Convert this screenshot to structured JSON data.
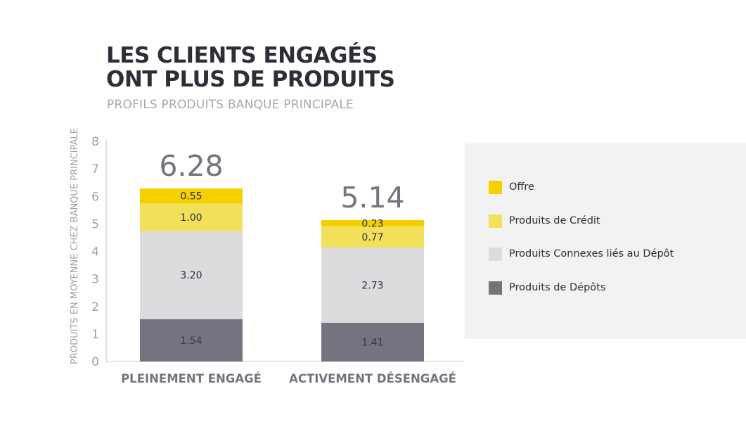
{
  "header": {
    "title_line1": "LES CLIENTS ENGAGÉS",
    "title_line2": "ONT PLUS DE PRODUITS",
    "subtitle": "PROFILS PRODUITS BANQUE PRINCIPALE"
  },
  "colors": {
    "offre": "#f5d000",
    "credit": "#f2e05a",
    "connexes": "#dcdcde",
    "depots": "#747480",
    "axis": "#c4c4cd",
    "tick_text": "#a0a0a8",
    "total_text": "#747480",
    "category_text": "#747480",
    "title": "#2e2e38"
  },
  "chart_data": {
    "type": "bar",
    "stacked": true,
    "categories": [
      "PLEINEMENT ENGAGÉ",
      "ACTIVEMENT DÉSENGAGÉ"
    ],
    "series": [
      {
        "name": "Produits de Dépôts",
        "values": [
          1.54,
          1.41
        ],
        "labels": [
          "1.54",
          "1.41"
        ],
        "color_key": "depots"
      },
      {
        "name": "Produits Connexes liés au Dépôt",
        "values": [
          3.2,
          2.73
        ],
        "labels": [
          "3.20",
          "2.73"
        ],
        "color_key": "connexes"
      },
      {
        "name": "Produits de Crédit",
        "values": [
          1.0,
          0.77
        ],
        "labels": [
          "1.00",
          "0.77"
        ],
        "color_key": "credit"
      },
      {
        "name": "Offre",
        "values": [
          0.55,
          0.23
        ],
        "labels": [
          "0.55",
          "0.23"
        ],
        "color_key": "offre"
      }
    ],
    "totals": [
      "6.28",
      "5.14"
    ],
    "ylabel": "PRODUITS EN MOYENNE CHEZ BANQUE PRINCIPALE",
    "xlabel": "",
    "ylim": [
      0,
      8
    ],
    "yticks": [
      "0",
      "1",
      "2",
      "3",
      "4",
      "5",
      "6",
      "7",
      "8"
    ],
    "grid": false,
    "legend": {
      "placement": "right",
      "entries": [
        "Offre",
        "Produits de Crédit",
        "Produits Connexes liés au Dépôt",
        "Produits de Dépôts"
      ]
    }
  }
}
